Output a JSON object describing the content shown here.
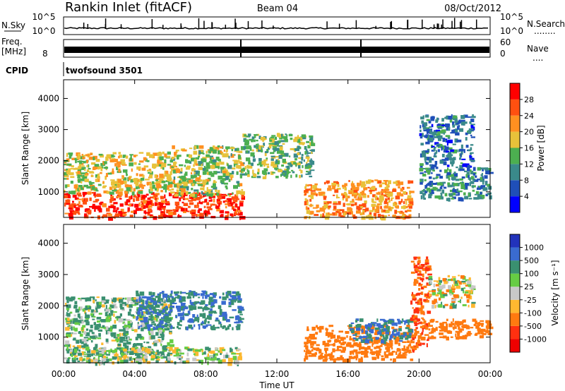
{
  "header": {
    "station": "Rankin Inlet (fitACF)",
    "beam": "Beam 04",
    "date": "08/Oct/2012"
  },
  "panels": {
    "nsky": {
      "label": "N.Sky",
      "ticks_left": [
        "10^5",
        "10^0"
      ],
      "ticks_right": [
        "10^5",
        "10^0"
      ],
      "right_label": "N.Search",
      "right_dots": "........"
    },
    "freq": {
      "label_line1": "Freq.",
      "label_line2": "[MHz]",
      "tick_left": "8",
      "ticks_right": [
        "60",
        "0"
      ],
      "right_label": "Nave",
      "right_dots": "...."
    },
    "cpid": {
      "label": "CPID",
      "text": "twofsound 3501"
    }
  },
  "axes": {
    "ylabel": "Slant Range [km]",
    "yticks": [
      "4000",
      "3000",
      "2000",
      "1000"
    ],
    "xticks": [
      "00:00",
      "04:00",
      "08:00",
      "12:00",
      "16:00",
      "20:00",
      "00:00"
    ],
    "xlabel": "Time UT"
  },
  "colorbars": {
    "power": {
      "label": "Power [dB]",
      "ticks": [
        "28",
        "24",
        "20",
        "16",
        "12",
        "8",
        "4"
      ],
      "colors": [
        "#0000ff",
        "#1f4fb8",
        "#3a8a8a",
        "#4caf50",
        "#e8c23a",
        "#ff9020",
        "#ff5010",
        "#ff0000"
      ]
    },
    "velocity": {
      "label": "Velocity [m s⁻¹]",
      "ticks": [
        "1000",
        "500",
        "100",
        "25",
        "-25",
        "-100",
        "-500",
        "-1000"
      ],
      "colors": [
        "#2233bb",
        "#3a6bd0",
        "#3a9070",
        "#66cc44",
        "#c8c8c8",
        "#ffb830",
        "#ff7a10",
        "#ff3010",
        "#ee0000"
      ]
    }
  },
  "chart_data": [
    {
      "type": "heatmap",
      "title": "Power [dB]",
      "xlabel": "Time UT",
      "ylabel": "Slant Range [km]",
      "xlim": [
        0,
        24
      ],
      "ylim": [
        180,
        4600
      ],
      "colorbar_ticks": [
        4,
        8,
        12,
        16,
        20,
        24,
        28
      ],
      "regions": [
        {
          "t": [
            0,
            10
          ],
          "r": [
            200,
            1000
          ],
          "value": 28
        },
        {
          "t": [
            0,
            6
          ],
          "r": [
            1000,
            2300
          ],
          "value": 18
        },
        {
          "t": [
            6,
            10
          ],
          "r": [
            900,
            2500
          ],
          "value": 16
        },
        {
          "t": [
            10,
            14
          ],
          "r": [
            1500,
            2900
          ],
          "value": 14
        },
        {
          "t": [
            13.5,
            19.5
          ],
          "r": [
            200,
            1400
          ],
          "value": 22
        },
        {
          "t": [
            20,
            24
          ],
          "r": [
            800,
            1800
          ],
          "value": 10
        },
        {
          "t": [
            20,
            23
          ],
          "r": [
            1800,
            3500
          ],
          "value": 8
        }
      ]
    },
    {
      "type": "heatmap",
      "title": "Velocity [m s⁻¹]",
      "xlabel": "Time UT",
      "ylabel": "Slant Range [km]",
      "xlim": [
        0,
        24
      ],
      "ylim": [
        180,
        4600
      ],
      "colorbar_ticks": [
        -1000,
        -500,
        -100,
        -25,
        25,
        100,
        500,
        1000
      ],
      "regions": [
        {
          "t": [
            0,
            6
          ],
          "r": [
            300,
            2300
          ],
          "value": 100
        },
        {
          "t": [
            0,
            10
          ],
          "r": [
            200,
            700
          ],
          "value": 50
        },
        {
          "t": [
            4,
            10
          ],
          "r": [
            1300,
            2500
          ],
          "value": 500
        },
        {
          "t": [
            13.5,
            19.5
          ],
          "r": [
            300,
            1400
          ],
          "value": -300
        },
        {
          "t": [
            16,
            19.5
          ],
          "r": [
            900,
            1600
          ],
          "value": 500
        },
        {
          "t": [
            19.5,
            20.5
          ],
          "r": [
            600,
            3600
          ],
          "value": -500
        },
        {
          "t": [
            20.5,
            24
          ],
          "r": [
            1000,
            1600
          ],
          "value": -300
        },
        {
          "t": [
            20.5,
            23
          ],
          "r": [
            2000,
            3000
          ],
          "value": 0
        }
      ]
    }
  ]
}
